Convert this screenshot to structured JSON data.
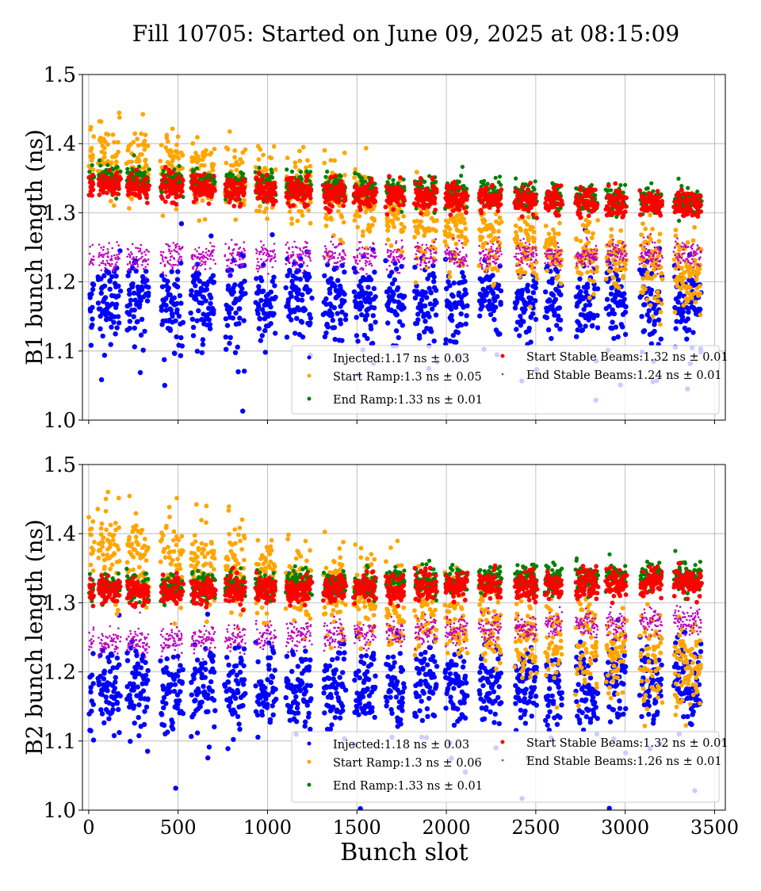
{
  "chart_data": [
    {
      "type": "scatter",
      "title": "Fill 10705: Started on June 09, 2025 at 08:15:09",
      "xlabel": "",
      "ylabel": "B1 bunch length (ns)",
      "xlim": [
        -35,
        3560
      ],
      "ylim": [
        1.0,
        1.5
      ],
      "xticks": [
        0,
        500,
        1000,
        1500,
        2000,
        2500,
        3000,
        3500
      ],
      "yticks": [
        "1.0",
        "1.1",
        "1.2",
        "1.3",
        "1.4",
        "1.5"
      ],
      "grid": true,
      "legend_placement": "lower-right",
      "series": [
        {
          "name": "Injected",
          "label": "Injected:1.17 ns ± 0.03",
          "color": "#0000ff",
          "mean": 1.17,
          "std": 0.03,
          "trend_x": [
            0,
            3420
          ],
          "trend_y": [
            1.17,
            1.17
          ]
        },
        {
          "name": "Start Ramp",
          "label": "Start Ramp:1.3 ns ± 0.05",
          "color": "#ffa500",
          "mean": 1.3,
          "std": 0.05,
          "trend_x": [
            0,
            1000,
            2000,
            3420
          ],
          "trend_y": [
            1.38,
            1.34,
            1.28,
            1.21
          ]
        },
        {
          "name": "End Ramp",
          "label": "End Ramp:1.33 ns ± 0.01",
          "color": "#008000",
          "mean": 1.33,
          "std": 0.01,
          "trend_x": [
            0,
            3420
          ],
          "trend_y": [
            1.35,
            1.315
          ]
        },
        {
          "name": "Start Stable Beams",
          "label": "Start Stable Beams:1.32 ns ± 0.01",
          "color": "#ff0000",
          "mean": 1.32,
          "std": 0.01,
          "trend_x": [
            0,
            3420
          ],
          "trend_y": [
            1.34,
            1.31
          ]
        },
        {
          "name": "End Stable Beams",
          "label": "End Stable Beams:1.24 ns ± 0.01",
          "color": "#bf00bf",
          "mean": 1.24,
          "std": 0.01,
          "trend_x": [
            0,
            3420
          ],
          "trend_y": [
            1.235,
            1.24
          ]
        }
      ]
    },
    {
      "type": "scatter",
      "xlabel": "Bunch slot",
      "ylabel": "B2 bunch length (ns)",
      "xlim": [
        -35,
        3560
      ],
      "ylim": [
        1.0,
        1.5
      ],
      "xticks": [
        0,
        500,
        1000,
        1500,
        2000,
        2500,
        3000,
        3500
      ],
      "yticks": [
        "1.0",
        "1.1",
        "1.2",
        "1.3",
        "1.4",
        "1.5"
      ],
      "grid": true,
      "legend_placement": "lower-right",
      "series": [
        {
          "name": "Injected",
          "label": "Injected:1.18 ns ± 0.03",
          "color": "#0000ff",
          "mean": 1.18,
          "std": 0.03,
          "trend_x": [
            0,
            3420
          ],
          "trend_y": [
            1.175,
            1.18
          ]
        },
        {
          "name": "Start Ramp",
          "label": "Start Ramp:1.3 ns ± 0.06",
          "color": "#ffa500",
          "mean": 1.3,
          "std": 0.06,
          "trend_x": [
            0,
            1000,
            2000,
            3420
          ],
          "trend_y": [
            1.38,
            1.34,
            1.28,
            1.2
          ]
        },
        {
          "name": "End Ramp",
          "label": "End Ramp:1.33 ns ± 0.01",
          "color": "#008000",
          "mean": 1.33,
          "std": 0.01,
          "trend_x": [
            0,
            3420
          ],
          "trend_y": [
            1.32,
            1.34
          ]
        },
        {
          "name": "Start Stable Beams",
          "label": "Start Stable Beams:1.32 ns ± 0.01",
          "color": "#ff0000",
          "mean": 1.32,
          "std": 0.01,
          "trend_x": [
            0,
            3420
          ],
          "trend_y": [
            1.315,
            1.33
          ]
        },
        {
          "name": "End Stable Beams",
          "label": "End Stable Beams:1.26 ns ± 0.01",
          "color": "#bf00bf",
          "mean": 1.26,
          "std": 0.01,
          "trend_x": [
            0,
            3420
          ],
          "trend_y": [
            1.24,
            1.275
          ]
        }
      ]
    }
  ],
  "filled_trains": [
    [
      0,
      25
    ],
    [
      50,
      170
    ],
    [
      210,
      330
    ],
    [
      400,
      520
    ],
    [
      570,
      700
    ],
    [
      760,
      870
    ],
    [
      930,
      1040
    ],
    [
      1100,
      1240
    ],
    [
      1310,
      1430
    ],
    [
      1480,
      1600
    ],
    [
      1660,
      1760
    ],
    [
      1820,
      1940
    ],
    [
      1990,
      2110
    ],
    [
      2180,
      2300
    ],
    [
      2380,
      2500
    ],
    [
      2550,
      2640
    ],
    [
      2720,
      2840
    ],
    [
      2890,
      3000
    ],
    [
      3080,
      3200
    ],
    [
      3270,
      3420
    ]
  ]
}
